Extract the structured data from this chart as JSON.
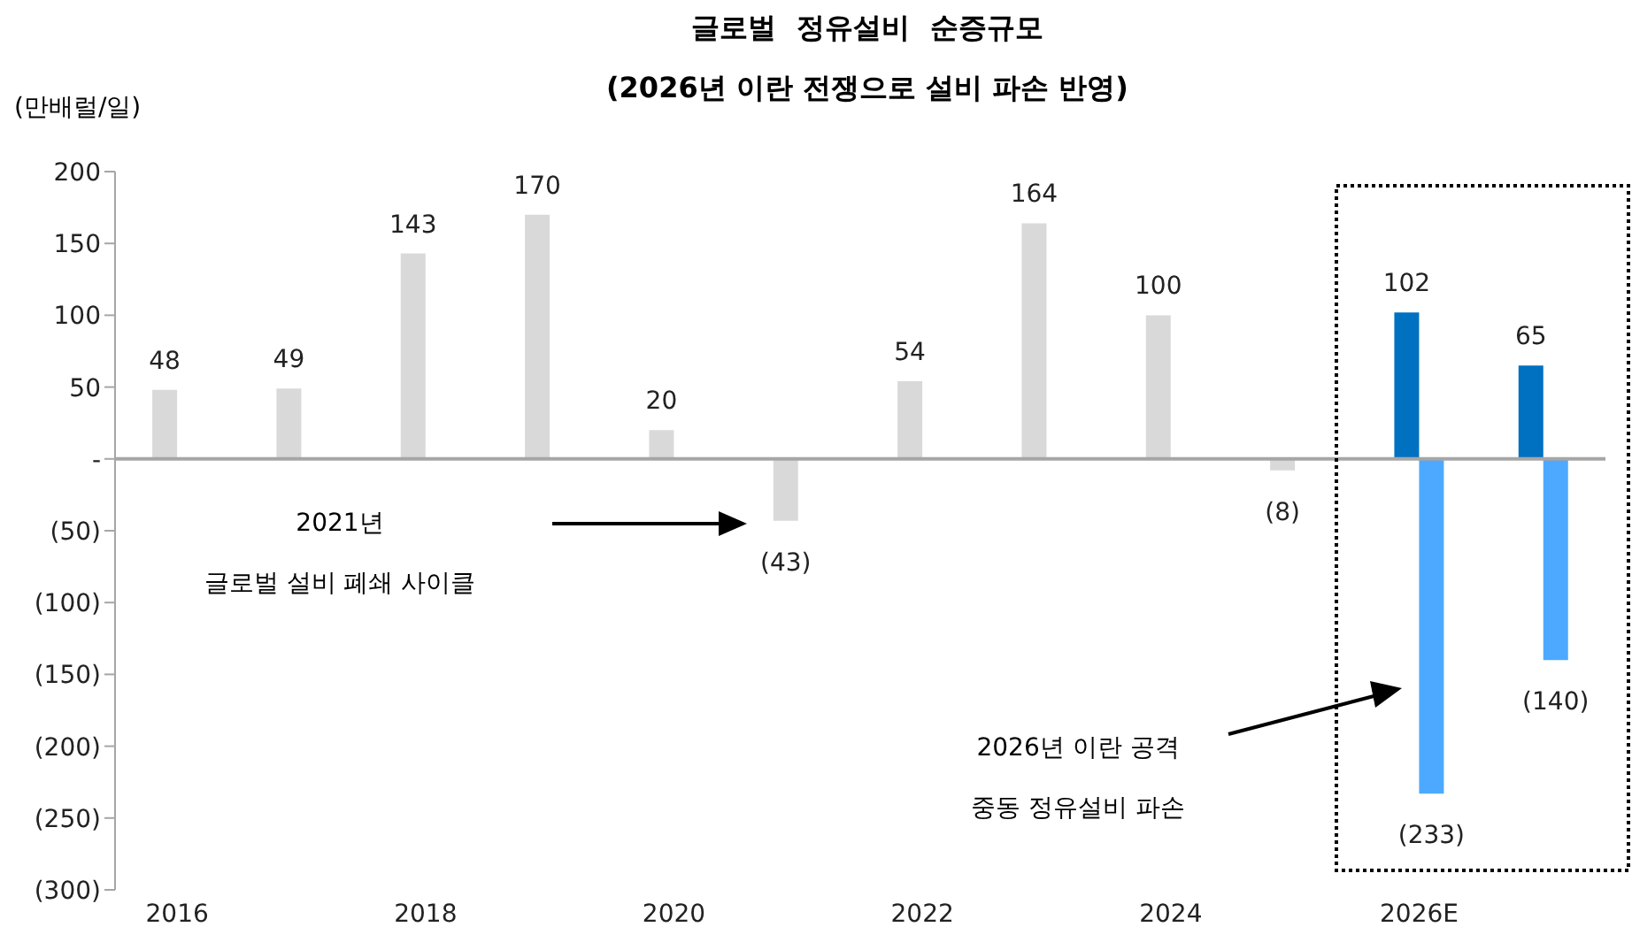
{
  "chart_data": {
    "type": "bar",
    "title": "글로벌 정유설비 순증규모",
    "subtitle": "(2026년 이란 전쟁으로 설비 파손 반영)",
    "ylabel": "(만배럴/일)",
    "categories": [
      "2016",
      null,
      "2018",
      null,
      "2020",
      null,
      "2022",
      null,
      "2024",
      null,
      "2026E",
      null
    ],
    "series": [
      {
        "color": "#d9d9d9",
        "values": [
          48,
          49,
          143,
          170,
          20,
          -43,
          54,
          164,
          100,
          -8,
          null,
          null
        ],
        "value_labels": [
          "48",
          "49",
          "143",
          "170",
          "20",
          "(43)",
          "54",
          "164",
          "100",
          "(8)",
          null,
          null
        ]
      },
      {
        "color": "#0070c0",
        "values": [
          null,
          null,
          null,
          null,
          null,
          null,
          null,
          null,
          null,
          null,
          102,
          65
        ],
        "value_labels": [
          null,
          null,
          null,
          null,
          null,
          null,
          null,
          null,
          null,
          null,
          "102",
          "65"
        ]
      },
      {
        "color": "#4da9ff",
        "values": [
          null,
          null,
          null,
          null,
          null,
          null,
          null,
          null,
          null,
          null,
          -233,
          -140
        ],
        "value_labels": [
          null,
          null,
          null,
          null,
          null,
          null,
          null,
          null,
          null,
          null,
          "(233)",
          "(140)"
        ]
      }
    ],
    "ylim": [
      -300,
      200
    ],
    "yticks": [
      200,
      150,
      100,
      50,
      {
        "value": 0,
        "label": "-"
      },
      {
        "value": -50,
        "label": "(50)"
      },
      {
        "value": -100,
        "label": "(100)"
      },
      {
        "value": -150,
        "label": "(150)"
      },
      {
        "value": -200,
        "label": "(200)"
      },
      {
        "value": -250,
        "label": "(250)"
      },
      {
        "value": -300,
        "label": "(300)"
      }
    ],
    "ref_lines": [
      {
        "axis": "y",
        "value": 0,
        "color": "#a6a6a6"
      }
    ],
    "annotations": [
      "2021년",
      "글로벌 설비 폐쇄 사이클",
      "2026년 이란 공격",
      "중동 정유설비 파손"
    ],
    "grid": false,
    "legend": false
  }
}
